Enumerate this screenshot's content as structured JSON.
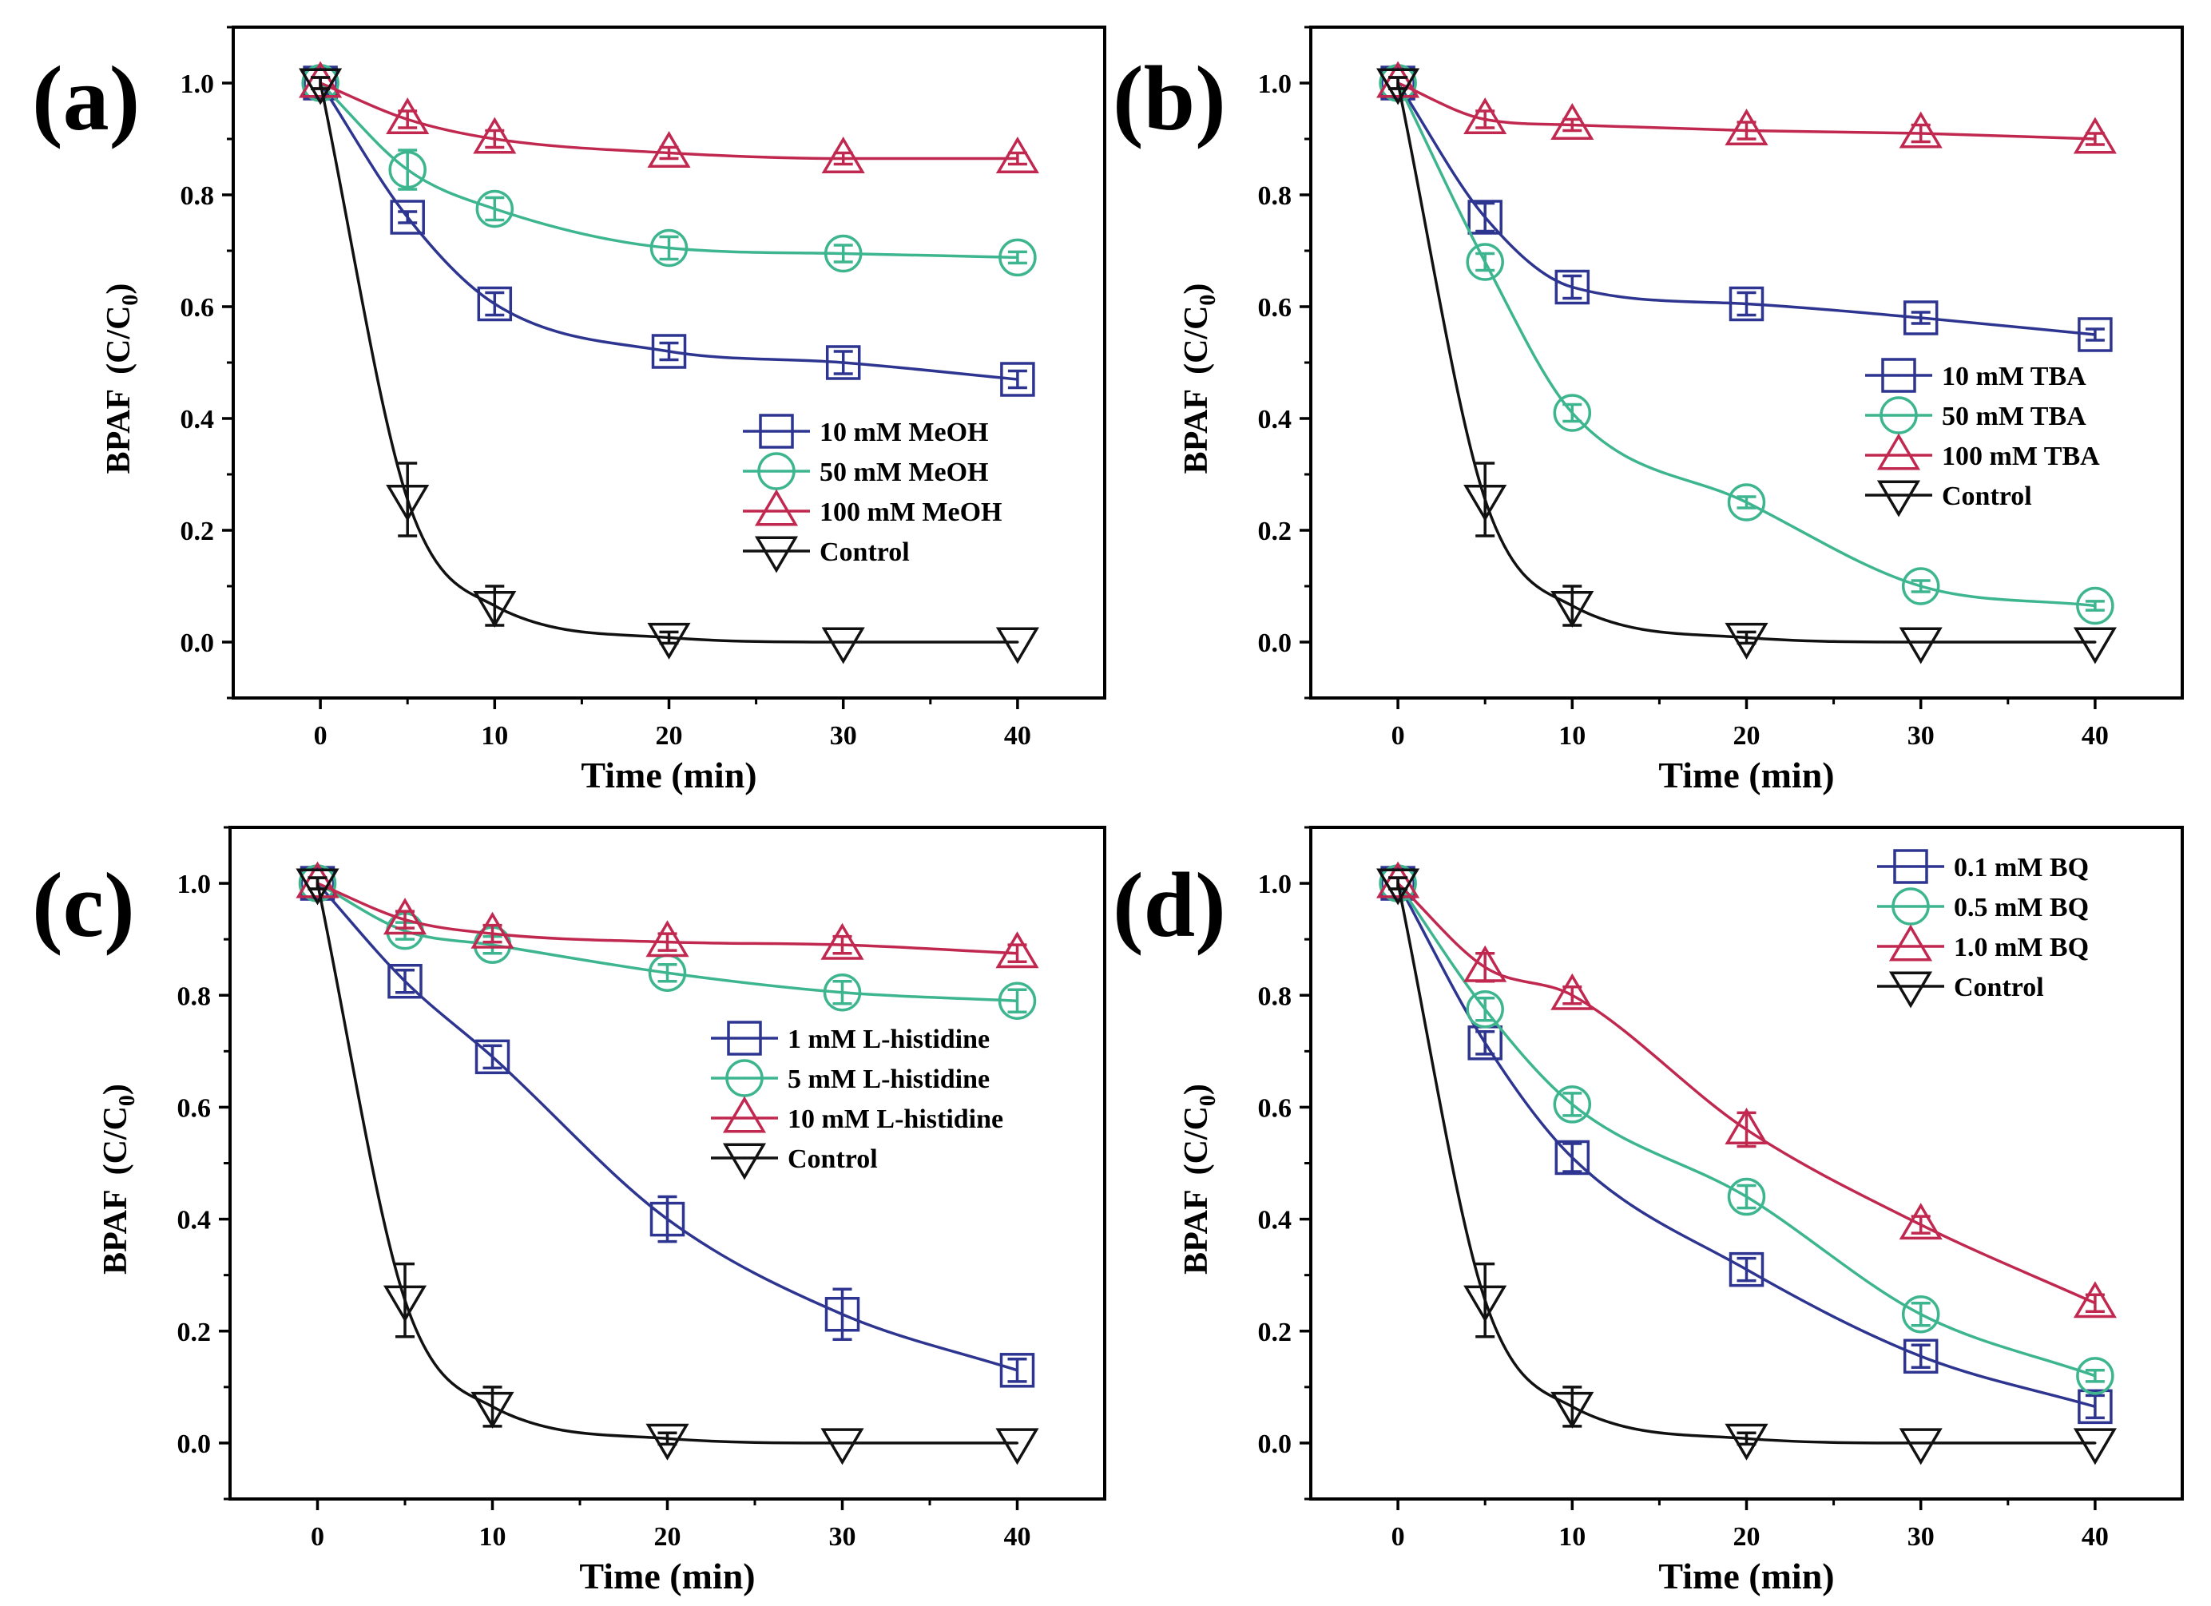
{
  "chart_data": [
    {
      "type": "line",
      "panel_label": "(a)",
      "xlabel": "Time (min)",
      "ylabel": "BPAF",
      "ylabel_units": "(C/C",
      "ylabel_sub": "0",
      "ylabel_close": ")",
      "xlim": [
        -5,
        45
      ],
      "ylim": [
        -0.1,
        1.1
      ],
      "xticks": [
        "0",
        "10",
        "20",
        "30",
        "40"
      ],
      "yticks": [
        "0.0",
        "0.2",
        "0.4",
        "0.6",
        "0.8",
        "1.0"
      ],
      "legend_position": "center-right",
      "series": [
        {
          "name": "10  mM MeOH",
          "marker": "square",
          "color": "#2d3590",
          "x": [
            0,
            5,
            10,
            20,
            30,
            40
          ],
          "y": [
            1.0,
            0.76,
            0.605,
            0.52,
            0.5,
            0.47
          ],
          "err": [
            0.01,
            0.01,
            0.02,
            0.015,
            0.02,
            0.015
          ]
        },
        {
          "name": "50  mM MeOH",
          "marker": "circle",
          "color": "#3db58f",
          "x": [
            0,
            5,
            10,
            20,
            30,
            40
          ],
          "y": [
            1.0,
            0.845,
            0.775,
            0.705,
            0.695,
            0.688
          ],
          "err": [
            0.01,
            0.035,
            0.02,
            0.02,
            0.015,
            0.01
          ]
        },
        {
          "name": "100 mM MeOH",
          "marker": "triangle-up",
          "color": "#c0284f",
          "x": [
            0,
            5,
            10,
            20,
            30,
            40
          ],
          "y": [
            1.0,
            0.935,
            0.9,
            0.875,
            0.865,
            0.865
          ],
          "err": [
            0.01,
            0.015,
            0.015,
            0.01,
            0.01,
            0.01
          ]
        },
        {
          "name": "Control",
          "marker": "triangle-down",
          "color": "#111111",
          "x": [
            0,
            5,
            10,
            20,
            30,
            40
          ],
          "y": [
            1.0,
            0.255,
            0.065,
            0.008,
            0.0,
            0.0
          ],
          "err": [
            0.01,
            0.065,
            0.035,
            0.01,
            0.0,
            0.0
          ]
        }
      ]
    },
    {
      "type": "line",
      "panel_label": "(b)",
      "xlabel": "Time (min)",
      "ylabel": "BPAF",
      "ylabel_units": "(C/C",
      "ylabel_sub": "0",
      "ylabel_close": ")",
      "xlim": [
        -5,
        45
      ],
      "ylim": [
        -0.1,
        1.1
      ],
      "xticks": [
        "0",
        "10",
        "20",
        "30",
        "40"
      ],
      "yticks": [
        "0.0",
        "0.2",
        "0.4",
        "0.6",
        "0.8",
        "1.0"
      ],
      "legend_position": "center-right",
      "series": [
        {
          "name": "10 mM TBA",
          "marker": "square",
          "color": "#2d3590",
          "x": [
            0,
            5,
            10,
            20,
            30,
            40
          ],
          "y": [
            1.0,
            0.76,
            0.635,
            0.605,
            0.58,
            0.55
          ],
          "err": [
            0.01,
            0.025,
            0.02,
            0.02,
            0.01,
            0.01
          ]
        },
        {
          "name": "50 mM TBA",
          "marker": "circle",
          "color": "#3db58f",
          "x": [
            0,
            5,
            10,
            20,
            30,
            40
          ],
          "y": [
            1.0,
            0.68,
            0.41,
            0.25,
            0.1,
            0.065
          ],
          "err": [
            0.01,
            0.015,
            0.015,
            0.01,
            0.01,
            0.008
          ]
        },
        {
          "name": "100 mM TBA",
          "marker": "triangle-up",
          "color": "#c0284f",
          "x": [
            0,
            5,
            10,
            20,
            30,
            40
          ],
          "y": [
            1.0,
            0.935,
            0.925,
            0.915,
            0.91,
            0.9
          ],
          "err": [
            0.01,
            0.015,
            0.01,
            0.015,
            0.015,
            0.01
          ]
        },
        {
          "name": "Control",
          "marker": "triangle-down",
          "color": "#111111",
          "x": [
            0,
            5,
            10,
            20,
            30,
            40
          ],
          "y": [
            1.0,
            0.255,
            0.065,
            0.008,
            0.0,
            0.0
          ],
          "err": [
            0.01,
            0.065,
            0.035,
            0.01,
            0.0,
            0.0
          ]
        }
      ]
    },
    {
      "type": "line",
      "panel_label": "(c)",
      "xlabel": "Time (min)",
      "ylabel": "BPAF",
      "ylabel_units": "(C/C",
      "ylabel_sub": "0",
      "ylabel_close": ")",
      "xlim": [
        -5,
        45
      ],
      "ylim": [
        -0.1,
        1.1
      ],
      "xticks": [
        "0",
        "10",
        "20",
        "30",
        "40"
      ],
      "yticks": [
        "0.0",
        "0.2",
        "0.4",
        "0.6",
        "0.8",
        "1.0"
      ],
      "legend_position": "center-right",
      "series": [
        {
          "name": "1 mM L-histidine",
          "marker": "square",
          "color": "#2d3590",
          "x": [
            0,
            5,
            10,
            20,
            30,
            40
          ],
          "y": [
            1.0,
            0.825,
            0.69,
            0.4,
            0.23,
            0.13
          ],
          "err": [
            0.01,
            0.02,
            0.02,
            0.04,
            0.045,
            0.02
          ]
        },
        {
          "name": "5 mM L-histidine",
          "marker": "circle",
          "color": "#3db58f",
          "x": [
            0,
            5,
            10,
            20,
            30,
            40
          ],
          "y": [
            1.0,
            0.915,
            0.89,
            0.84,
            0.805,
            0.79
          ],
          "err": [
            0.01,
            0.015,
            0.015,
            0.015,
            0.02,
            0.02
          ]
        },
        {
          "name": "10 mM L-histidine",
          "marker": "triangle-up",
          "color": "#c0284f",
          "x": [
            0,
            5,
            10,
            20,
            30,
            40
          ],
          "y": [
            1.0,
            0.935,
            0.91,
            0.895,
            0.89,
            0.875
          ],
          "err": [
            0.01,
            0.015,
            0.015,
            0.015,
            0.015,
            0.015
          ]
        },
        {
          "name": "Control",
          "marker": "triangle-down",
          "color": "#111111",
          "x": [
            0,
            5,
            10,
            20,
            30,
            40
          ],
          "y": [
            1.0,
            0.255,
            0.065,
            0.008,
            0.0,
            0.0
          ],
          "err": [
            0.01,
            0.065,
            0.035,
            0.01,
            0.0,
            0.0
          ]
        }
      ]
    },
    {
      "type": "line",
      "panel_label": "(d)",
      "xlabel": "Time (min)",
      "ylabel": "BPAF",
      "ylabel_units": "(C/C",
      "ylabel_sub": "0",
      "ylabel_close": ")",
      "xlim": [
        -5,
        45
      ],
      "ylim": [
        -0.1,
        1.1
      ],
      "xticks": [
        "0",
        "10",
        "20",
        "30",
        "40"
      ],
      "yticks": [
        "0.0",
        "0.2",
        "0.4",
        "0.6",
        "0.8",
        "1.0"
      ],
      "legend_position": "top-right",
      "series": [
        {
          "name": "0.1 mM BQ",
          "marker": "square",
          "color": "#2d3590",
          "x": [
            0,
            5,
            10,
            20,
            30,
            40
          ],
          "y": [
            1.0,
            0.715,
            0.51,
            0.31,
            0.155,
            0.065
          ],
          "err": [
            0.01,
            0.02,
            0.025,
            0.02,
            0.02,
            0.02
          ]
        },
        {
          "name": "0.5 mM BQ",
          "marker": "circle",
          "color": "#3db58f",
          "x": [
            0,
            5,
            10,
            20,
            30,
            40
          ],
          "y": [
            1.0,
            0.775,
            0.605,
            0.44,
            0.23,
            0.12
          ],
          "err": [
            0.01,
            0.02,
            0.02,
            0.02,
            0.02,
            0.01
          ]
        },
        {
          "name": "1.0 mM BQ",
          "marker": "triangle-up",
          "color": "#c0284f",
          "x": [
            0,
            5,
            10,
            20,
            30,
            40
          ],
          "y": [
            1.0,
            0.85,
            0.8,
            0.56,
            0.39,
            0.25
          ],
          "err": [
            0.01,
            0.025,
            0.015,
            0.03,
            0.015,
            0.015
          ]
        },
        {
          "name": "Control",
          "marker": "triangle-down",
          "color": "#111111",
          "x": [
            0,
            5,
            10,
            20,
            30,
            40
          ],
          "y": [
            1.0,
            0.255,
            0.065,
            0.008,
            0.0,
            0.0
          ],
          "err": [
            0.01,
            0.065,
            0.035,
            0.01,
            0.0,
            0.0
          ]
        }
      ]
    }
  ]
}
